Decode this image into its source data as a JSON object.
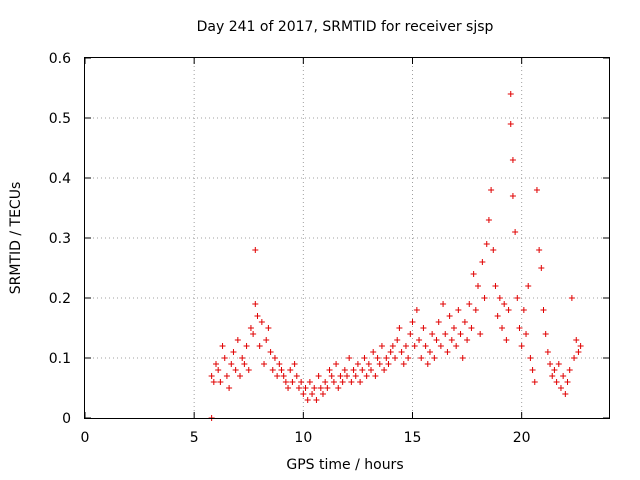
{
  "chart_data": {
    "type": "scatter",
    "title": "Day 241 of 2017, SRMTID for receiver sjsp",
    "xlabel": "GPS time / hours",
    "ylabel": "SRMTID / TECUs",
    "xlim": [
      0,
      24
    ],
    "ylim": [
      0,
      0.6
    ],
    "xticks": [
      0,
      5,
      10,
      15,
      20
    ],
    "xtick_labels": [
      "0",
      "5",
      "10",
      "15",
      "20"
    ],
    "yticks": [
      0,
      0.1,
      0.2,
      0.3,
      0.4,
      0.5,
      0.6
    ],
    "ytick_labels": [
      "0",
      "0.1",
      "0.2",
      "0.3",
      "0.4",
      "0.5",
      "0.6"
    ],
    "grid": true,
    "marker": "+",
    "color": "#e00000",
    "series": [
      {
        "name": "SRMTID",
        "x": [
          5.8,
          5.8,
          5.9,
          6.0,
          6.1,
          6.2,
          6.3,
          6.4,
          6.5,
          6.6,
          6.7,
          6.8,
          6.9,
          7.0,
          7.1,
          7.2,
          7.3,
          7.4,
          7.5,
          7.6,
          7.7,
          7.8,
          7.8,
          7.9,
          8.0,
          8.1,
          8.2,
          8.3,
          8.4,
          8.5,
          8.6,
          8.7,
          8.8,
          8.9,
          9.0,
          9.1,
          9.2,
          9.3,
          9.4,
          9.5,
          9.6,
          9.7,
          9.8,
          9.9,
          10.0,
          10.1,
          10.2,
          10.3,
          10.4,
          10.5,
          10.6,
          10.7,
          10.8,
          10.9,
          11.0,
          11.1,
          11.2,
          11.3,
          11.4,
          11.5,
          11.6,
          11.7,
          11.8,
          11.9,
          12.0,
          12.1,
          12.2,
          12.3,
          12.4,
          12.5,
          12.6,
          12.7,
          12.8,
          12.9,
          13.0,
          13.1,
          13.2,
          13.3,
          13.4,
          13.5,
          13.6,
          13.7,
          13.8,
          13.9,
          14.0,
          14.1,
          14.2,
          14.3,
          14.4,
          14.5,
          14.6,
          14.7,
          14.8,
          14.9,
          15.0,
          15.1,
          15.2,
          15.3,
          15.4,
          15.5,
          15.6,
          15.7,
          15.8,
          15.9,
          16.0,
          16.1,
          16.2,
          16.3,
          16.4,
          16.5,
          16.6,
          16.7,
          16.8,
          16.9,
          17.0,
          17.1,
          17.2,
          17.3,
          17.4,
          17.5,
          17.6,
          17.7,
          17.8,
          17.9,
          18.0,
          18.1,
          18.2,
          18.3,
          18.4,
          18.5,
          18.6,
          18.7,
          18.8,
          18.9,
          19.0,
          19.1,
          19.2,
          19.3,
          19.4,
          19.5,
          19.5,
          19.6,
          19.6,
          19.7,
          19.8,
          19.9,
          20.0,
          20.1,
          20.2,
          20.3,
          20.4,
          20.5,
          20.6,
          20.7,
          20.8,
          20.9,
          21.0,
          21.1,
          21.2,
          21.3,
          21.4,
          21.5,
          21.6,
          21.7,
          21.8,
          21.9,
          22.0,
          22.1,
          22.2,
          22.3,
          22.4,
          22.5,
          22.6,
          22.7
        ],
        "y": [
          0.0,
          0.07,
          0.06,
          0.09,
          0.08,
          0.06,
          0.12,
          0.1,
          0.07,
          0.05,
          0.09,
          0.11,
          0.08,
          0.13,
          0.07,
          0.1,
          0.09,
          0.12,
          0.08,
          0.15,
          0.14,
          0.28,
          0.19,
          0.17,
          0.12,
          0.16,
          0.09,
          0.13,
          0.15,
          0.11,
          0.08,
          0.1,
          0.07,
          0.09,
          0.08,
          0.07,
          0.06,
          0.05,
          0.08,
          0.06,
          0.09,
          0.07,
          0.05,
          0.06,
          0.04,
          0.05,
          0.03,
          0.06,
          0.04,
          0.05,
          0.03,
          0.07,
          0.05,
          0.04,
          0.06,
          0.05,
          0.08,
          0.07,
          0.06,
          0.09,
          0.05,
          0.07,
          0.06,
          0.08,
          0.07,
          0.1,
          0.06,
          0.08,
          0.07,
          0.09,
          0.06,
          0.08,
          0.1,
          0.07,
          0.09,
          0.08,
          0.11,
          0.07,
          0.1,
          0.09,
          0.12,
          0.08,
          0.1,
          0.09,
          0.11,
          0.12,
          0.1,
          0.13,
          0.15,
          0.11,
          0.09,
          0.12,
          0.1,
          0.14,
          0.16,
          0.12,
          0.18,
          0.13,
          0.1,
          0.15,
          0.12,
          0.09,
          0.11,
          0.14,
          0.1,
          0.13,
          0.16,
          0.12,
          0.19,
          0.14,
          0.11,
          0.17,
          0.13,
          0.15,
          0.12,
          0.18,
          0.14,
          0.1,
          0.16,
          0.13,
          0.19,
          0.15,
          0.24,
          0.18,
          0.22,
          0.14,
          0.26,
          0.2,
          0.29,
          0.33,
          0.38,
          0.28,
          0.22,
          0.17,
          0.2,
          0.15,
          0.19,
          0.13,
          0.18,
          0.54,
          0.49,
          0.43,
          0.37,
          0.31,
          0.2,
          0.15,
          0.12,
          0.18,
          0.14,
          0.22,
          0.1,
          0.08,
          0.06,
          0.38,
          0.28,
          0.25,
          0.18,
          0.14,
          0.11,
          0.09,
          0.07,
          0.08,
          0.06,
          0.09,
          0.05,
          0.07,
          0.04,
          0.06,
          0.08,
          0.2,
          0.1,
          0.13,
          0.11,
          0.12
        ]
      }
    ]
  }
}
